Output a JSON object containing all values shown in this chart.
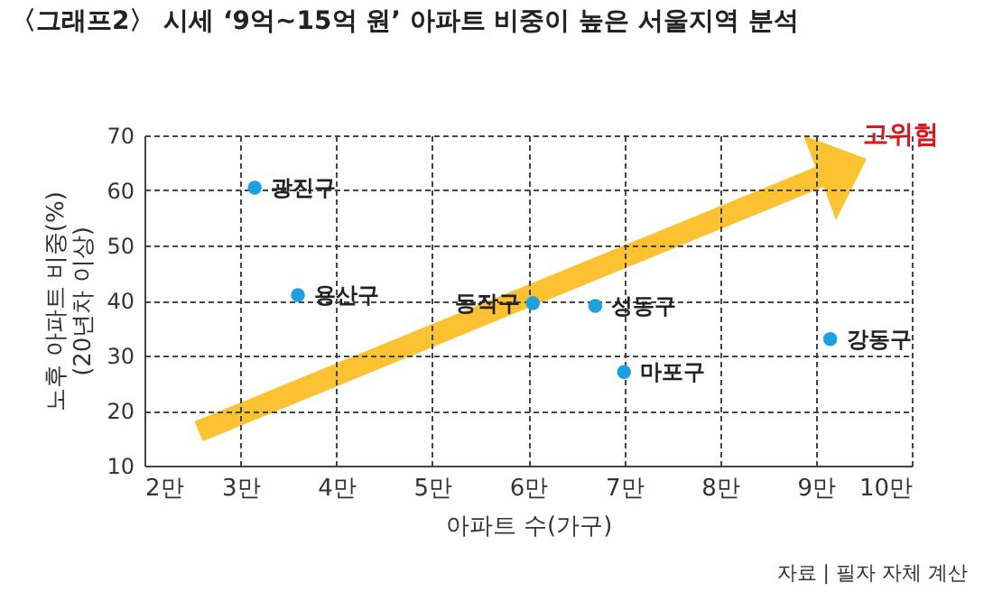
{
  "chart_data": {
    "type": "scatter",
    "title": "〈그래프2〉 시세 ‘9억~15억 원’ 아파트 비중이 높은 서울지역 분석",
    "xlabel": "아파트 수(가구)",
    "ylabel": "노후 아파트 비중(%)\n(20년차 이상)",
    "x": [
      3.15,
      3.6,
      6.05,
      6.7,
      7.0,
      9.15
    ],
    "series": [
      {
        "color": "#1ba1e2",
        "values": [
          60.5,
          41,
          39.5,
          39,
          27,
          33
        ]
      }
    ],
    "xlim": [
      2,
      10
    ],
    "xticks": [
      {
        "value": 2,
        "label": "2만"
      },
      {
        "value": 3,
        "label": "3만"
      },
      {
        "value": 4,
        "label": "4만"
      },
      {
        "value": 5,
        "label": "5만"
      },
      {
        "value": 6,
        "label": "6만"
      },
      {
        "value": 7,
        "label": "7만"
      },
      {
        "value": 8,
        "label": "8만"
      },
      {
        "value": 9,
        "label": "9만"
      },
      {
        "value": 10,
        "label": "10만"
      }
    ],
    "ylim": [
      10,
      70
    ],
    "yticks": [
      10,
      20,
      30,
      40,
      50,
      60,
      70
    ],
    "grid": true,
    "marker": "circle",
    "legend": false,
    "annotations": [
      {
        "text": "광진구",
        "x": 3.15,
        "y": 60.5
      },
      {
        "text": "용산구",
        "x": 3.6,
        "y": 41
      },
      {
        "text": "동작구",
        "x": 6.05,
        "y": 39.5
      },
      {
        "text": "성동구",
        "x": 6.7,
        "y": 39
      },
      {
        "text": "마포구",
        "x": 7.0,
        "y": 27
      },
      {
        "text": "강동구",
        "x": 9.15,
        "y": 33
      },
      "고위험",
      "자료 | 필자 자체 계산"
    ]
  }
}
